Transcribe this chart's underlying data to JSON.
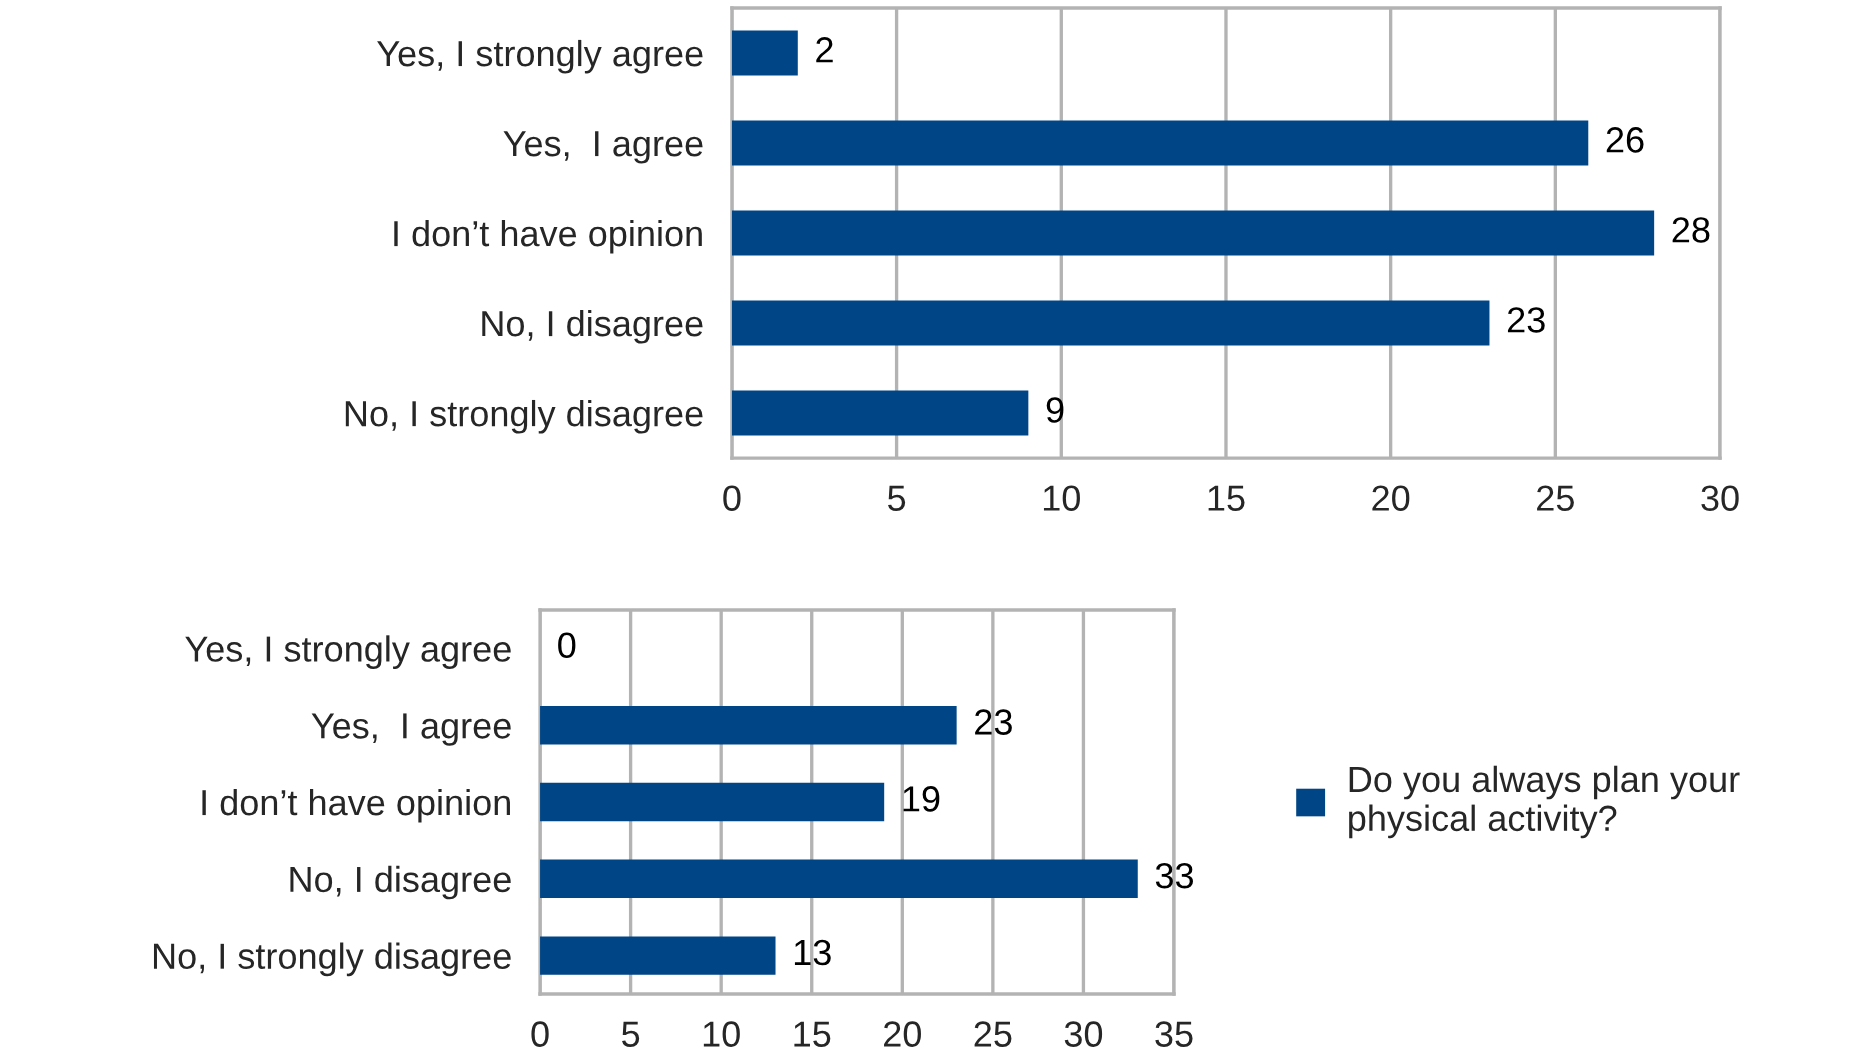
{
  "chart_data": [
    {
      "type": "bar",
      "orientation": "horizontal",
      "categories": [
        "Yes, I strongly agree",
        "Yes,  I agree",
        "I don’t have opinion",
        "No, I disagree",
        "No, I strongly disagree"
      ],
      "series": [
        {
          "color": "#004586",
          "values": [
            2,
            26,
            28,
            23,
            9
          ]
        }
      ],
      "xlim": [
        0,
        30
      ],
      "xticks": [
        0,
        5,
        10,
        15,
        20,
        25,
        30
      ],
      "grid": "x",
      "data_labels": true,
      "legend": false
    },
    {
      "type": "bar",
      "orientation": "horizontal",
      "categories": [
        "Yes, I strongly agree",
        "Yes,  I agree",
        "I don’t have opinion",
        "No, I disagree",
        "No, I strongly disagree"
      ],
      "series": [
        {
          "name": "Do you always plan your physical activity?",
          "color": "#004586",
          "values": [
            0,
            23,
            19,
            33,
            13
          ]
        }
      ],
      "xlim": [
        0,
        35
      ],
      "xticks": [
        0,
        5,
        10,
        15,
        20,
        25,
        30,
        35
      ],
      "grid": "x",
      "data_labels": true,
      "legend": "right"
    }
  ]
}
